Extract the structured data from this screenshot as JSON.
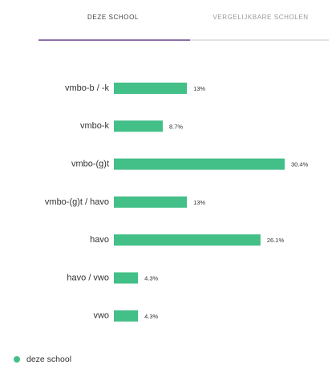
{
  "tabs": [
    "DEZE SCHOOL",
    "VERGELIJKBARE SCHOLEN"
  ],
  "chart_data": {
    "type": "bar",
    "orientation": "horizontal",
    "categories": [
      "vmbo-b / -k",
      "vmbo-k",
      "vmbo-(g)t",
      "vmbo-(g)t / havo",
      "havo",
      "havo / vwo",
      "vwo"
    ],
    "series": [
      {
        "name": "deze school",
        "color": "#43bf88",
        "values": [
          13,
          8.7,
          30.4,
          13,
          26.1,
          4.3,
          4.3
        ],
        "value_labels": [
          "13%",
          "8.7%",
          "30.4%",
          "13%",
          "26.1%",
          "4.3%",
          "4.3%"
        ]
      }
    ]
  }
}
